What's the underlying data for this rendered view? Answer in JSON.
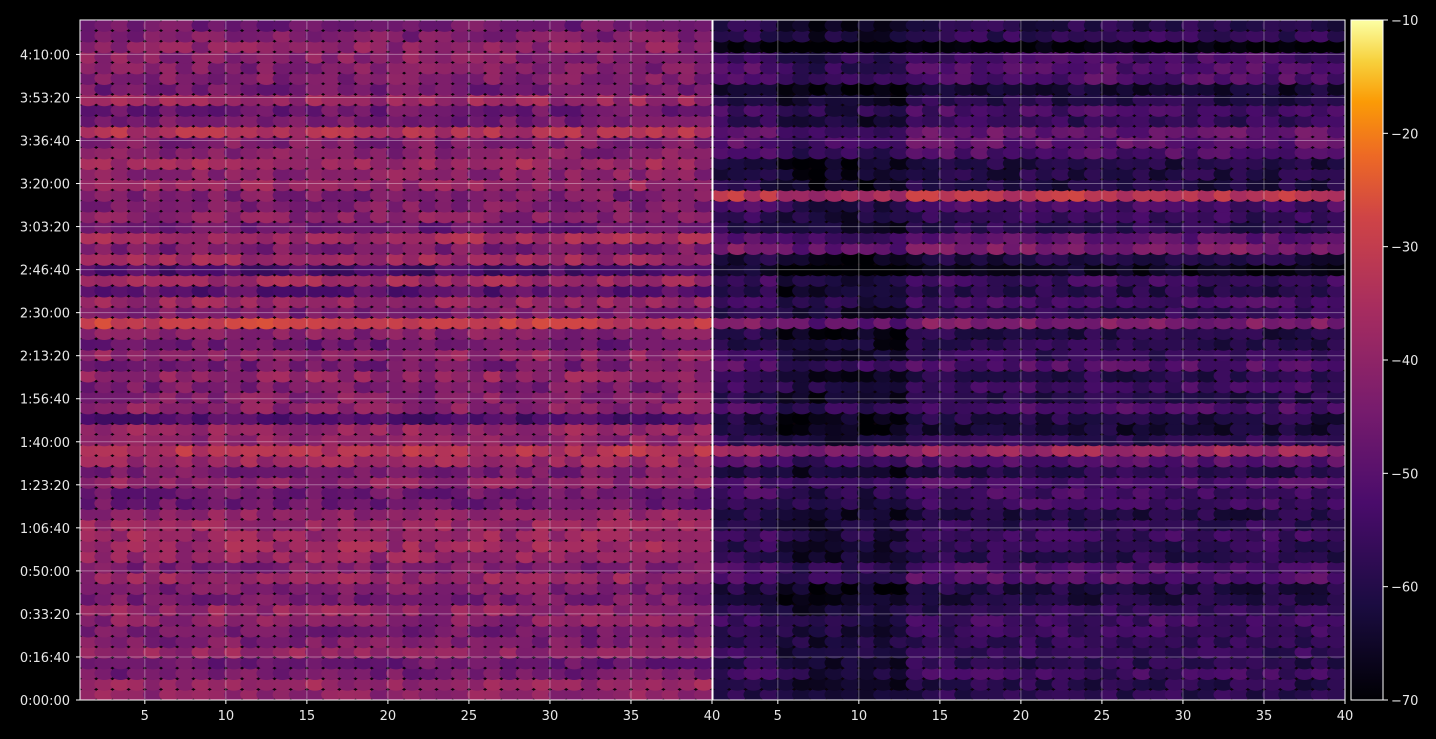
{
  "chart_data": {
    "type": "heatmap",
    "panels": 2,
    "grid": true,
    "x_ticks": [
      "5",
      "10",
      "15",
      "20",
      "25",
      "30",
      "35",
      "40"
    ],
    "x_tick_values": [
      5,
      10,
      15,
      20,
      25,
      30,
      35,
      40
    ],
    "xlim": [
      1,
      40
    ],
    "y_ticks": [
      "0:00:00",
      "0:16:40",
      "0:33:20",
      "0:50:00",
      "1:06:40",
      "1:23:20",
      "1:40:00",
      "1:56:40",
      "2:13:20",
      "2:30:00",
      "2:46:40",
      "3:03:20",
      "3:20:00",
      "3:36:40",
      "3:53:20",
      "4:10:00"
    ],
    "y_tick_seconds": [
      0,
      1000,
      2000,
      3000,
      4000,
      5000,
      6000,
      7000,
      8000,
      9000,
      10000,
      11000,
      12000,
      13000,
      14000,
      15000
    ],
    "ylim_seconds": [
      0,
      15800
    ],
    "colorbar": {
      "colormap": "inferno",
      "range": [
        -70,
        -10
      ],
      "ticks": [
        "−10",
        "−20",
        "−30",
        "−40",
        "−50",
        "−60",
        "−70"
      ],
      "tick_values": [
        -10,
        -20,
        -30,
        -40,
        -50,
        -60,
        -70
      ]
    },
    "panel_base_levels": [
      -42,
      -56
    ],
    "notable_bands": [
      {
        "time_s": 10600,
        "value": -20
      },
      {
        "time_s": 5700,
        "value": -22
      },
      {
        "time_s": 11700,
        "value": -24
      },
      {
        "time_s": 8700,
        "value": -26
      },
      {
        "time_s": 13100,
        "value": -30
      }
    ]
  }
}
